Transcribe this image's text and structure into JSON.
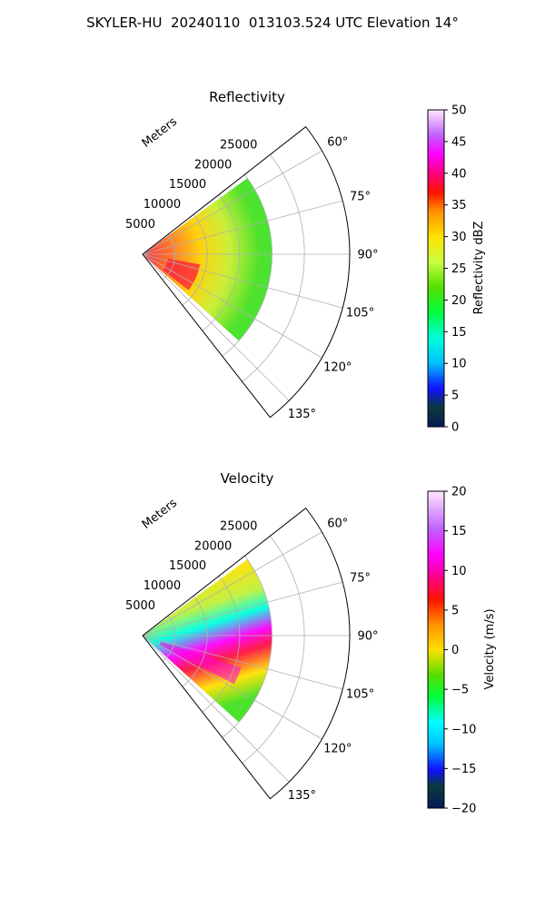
{
  "title": "SKYLER-HU  20240110  013103.524 UTC Elevation 14°",
  "chart_data": [
    {
      "type": "heatmap",
      "title": "Reflectivity",
      "radial_label": "Meters",
      "r_ticks": [
        5000,
        10000,
        15000,
        20000,
        25000
      ],
      "r_tick_labels": [
        "5000",
        "10000",
        "15000",
        "20000",
        "25000"
      ],
      "r_max": 32000,
      "theta_range_deg": [
        52,
        142
      ],
      "theta_ticks_deg": [
        60,
        75,
        90,
        105,
        120,
        135
      ],
      "theta_tick_labels": [
        "60°",
        "75°",
        "90°",
        "105°",
        "120°",
        "135°"
      ],
      "grid": true,
      "colorbar": {
        "label": "Reflectivity dBZ",
        "range": [
          0,
          50
        ],
        "ticks": [
          0,
          5,
          10,
          15,
          20,
          25,
          30,
          35,
          40,
          45,
          50
        ],
        "tick_labels": [
          "0",
          "5",
          "10",
          "15",
          "20",
          "25",
          "30",
          "35",
          "40",
          "45",
          "50"
        ]
      },
      "echo_extent_m": {
        "near_edge": 0,
        "far_edge": 20000
      }
    },
    {
      "type": "heatmap",
      "title": "Velocity",
      "radial_label": "Meters",
      "r_ticks": [
        5000,
        10000,
        15000,
        20000,
        25000
      ],
      "r_tick_labels": [
        "5000",
        "10000",
        "15000",
        "20000",
        "25000"
      ],
      "r_max": 32000,
      "theta_range_deg": [
        52,
        142
      ],
      "theta_ticks_deg": [
        60,
        75,
        90,
        105,
        120,
        135
      ],
      "theta_tick_labels": [
        "60°",
        "75°",
        "90°",
        "105°",
        "120°",
        "135°"
      ],
      "grid": true,
      "colorbar": {
        "label": "Velocity (m/s)",
        "range": [
          -20,
          20
        ],
        "ticks": [
          -20,
          -15,
          -10,
          -5,
          0,
          5,
          10,
          15,
          20
        ],
        "tick_labels": [
          "−20",
          "−15",
          "−10",
          "−5",
          "0",
          "5",
          "10",
          "15",
          "20"
        ]
      },
      "echo_extent_m": {
        "near_edge": 0,
        "far_edge": 20000
      }
    }
  ]
}
